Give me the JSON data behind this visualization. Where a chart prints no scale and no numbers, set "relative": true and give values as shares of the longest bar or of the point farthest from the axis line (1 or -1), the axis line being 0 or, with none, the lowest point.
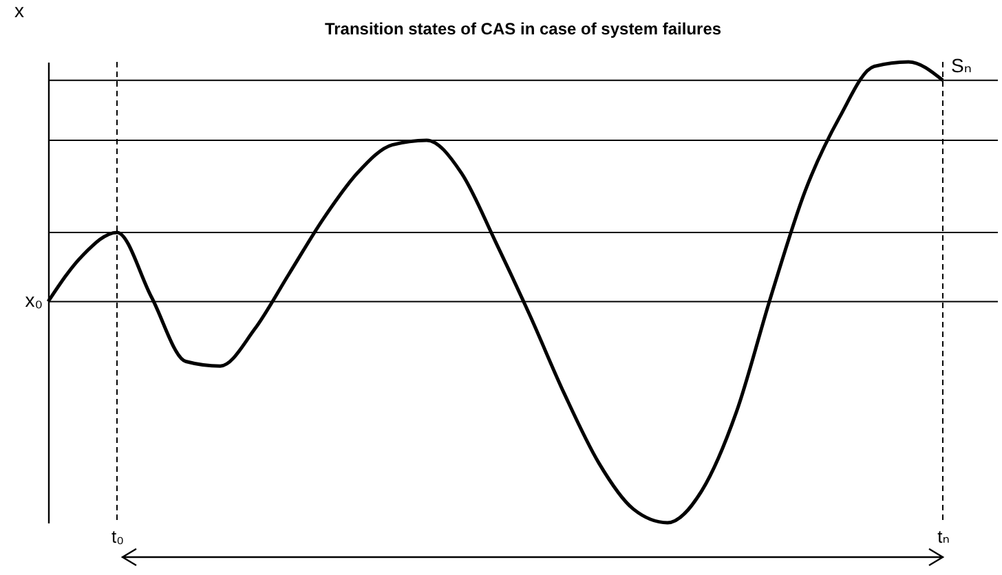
{
  "chart_data": {
    "type": "line",
    "title": "Transition states of CAS in case of system failures",
    "ylabel": "x",
    "relative": true,
    "marker": "none",
    "line_style": "solid",
    "grid": false,
    "categories": [
      null,
      null,
      "t₀",
      null,
      null,
      null,
      null,
      null,
      null,
      null,
      null,
      null,
      null,
      null,
      null,
      null,
      null,
      null,
      null,
      null,
      null,
      null,
      null,
      null,
      null,
      null,
      "tₙ"
    ],
    "series": [
      {
        "color": "#000000",
        "values": [
          0.48,
          0.58,
          0.63,
          0.49,
          0.35,
          0.34,
          0.42,
          0.54,
          0.66,
          0.76,
          0.82,
          0.83,
          0.76,
          0.61,
          0.45,
          0.28,
          0.13,
          0.03,
          0,
          0.07,
          0.24,
          0.49,
          0.72,
          0.88,
          0.99,
          1,
          0.96
        ]
      }
    ],
    "ref_lines": [
      {
        "axis": "y",
        "value": 0.96,
        "label": null,
        "color": "#000000",
        "line_style": "solid"
      },
      {
        "axis": "y",
        "value": 0.83,
        "label": null,
        "color": "#000000",
        "line_style": "solid"
      },
      {
        "axis": "y",
        "value": 0.63,
        "label": null,
        "color": "#000000",
        "line_style": "solid"
      },
      {
        "axis": "y",
        "value": 0.48,
        "label": "x₀",
        "color": "#000000",
        "line_style": "solid"
      },
      {
        "axis": "x",
        "value": "t₀",
        "label": null,
        "color": "#000000",
        "line_style": "dashed"
      },
      {
        "axis": "x",
        "value": "tₙ",
        "label": null,
        "color": "#000000",
        "line_style": "dashed"
      }
    ],
    "annotations": [
      {
        "text": "Sₙ",
        "x": "tₙ",
        "y": 0.96
      }
    ]
  }
}
